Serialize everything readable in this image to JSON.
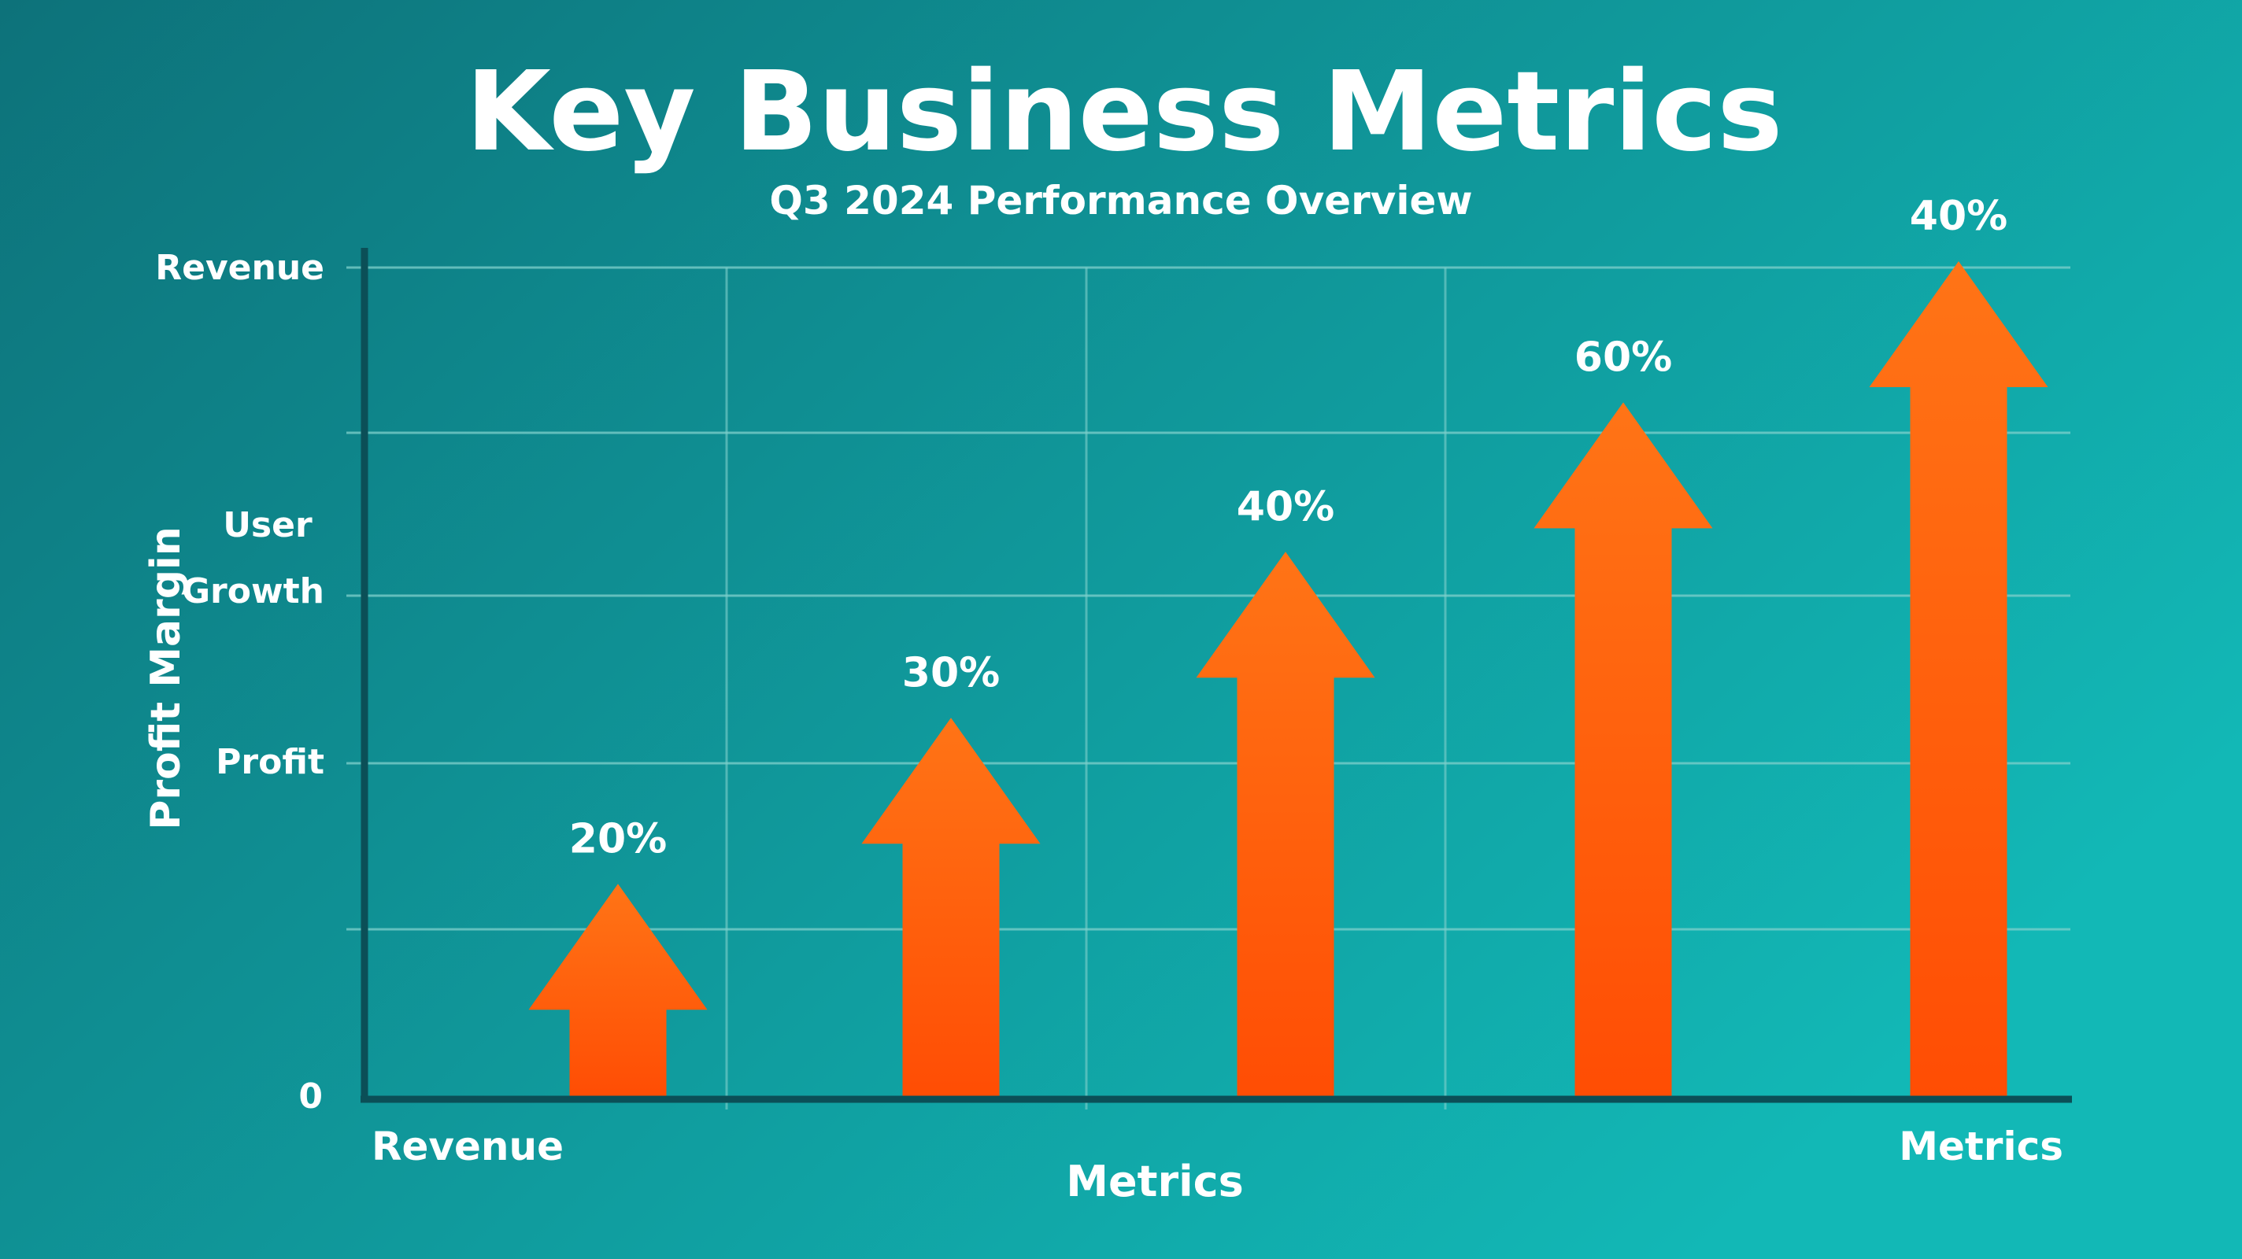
{
  "chart_data": {
    "type": "bar",
    "mark_style": "upward arrows",
    "title": "Key Business Metrics",
    "subtitle": "Q3 2024 Performance Overview",
    "ylabel": "Profit Margin",
    "xlabel": "Metrics",
    "y_tick_labels": [
      "0",
      "Profit",
      "User\nGrowth",
      "Revenue"
    ],
    "x_tick_labels": [
      "Revenue",
      "Metrics"
    ],
    "data_labels": [
      "20%",
      "30%",
      "40%",
      "60%",
      "40%"
    ],
    "values_fraction_of_axis": [
      0.25,
      0.45,
      0.65,
      0.83,
      1.0
    ],
    "grid": true,
    "legend": "none",
    "colors": {
      "background_start": "#0d727a",
      "background_end": "#12b8b6",
      "arrow_top": "#ff7416",
      "arrow_bottom": "#ff4d04",
      "axis": "#0b4f57",
      "grid": "#7fd0cc"
    }
  }
}
